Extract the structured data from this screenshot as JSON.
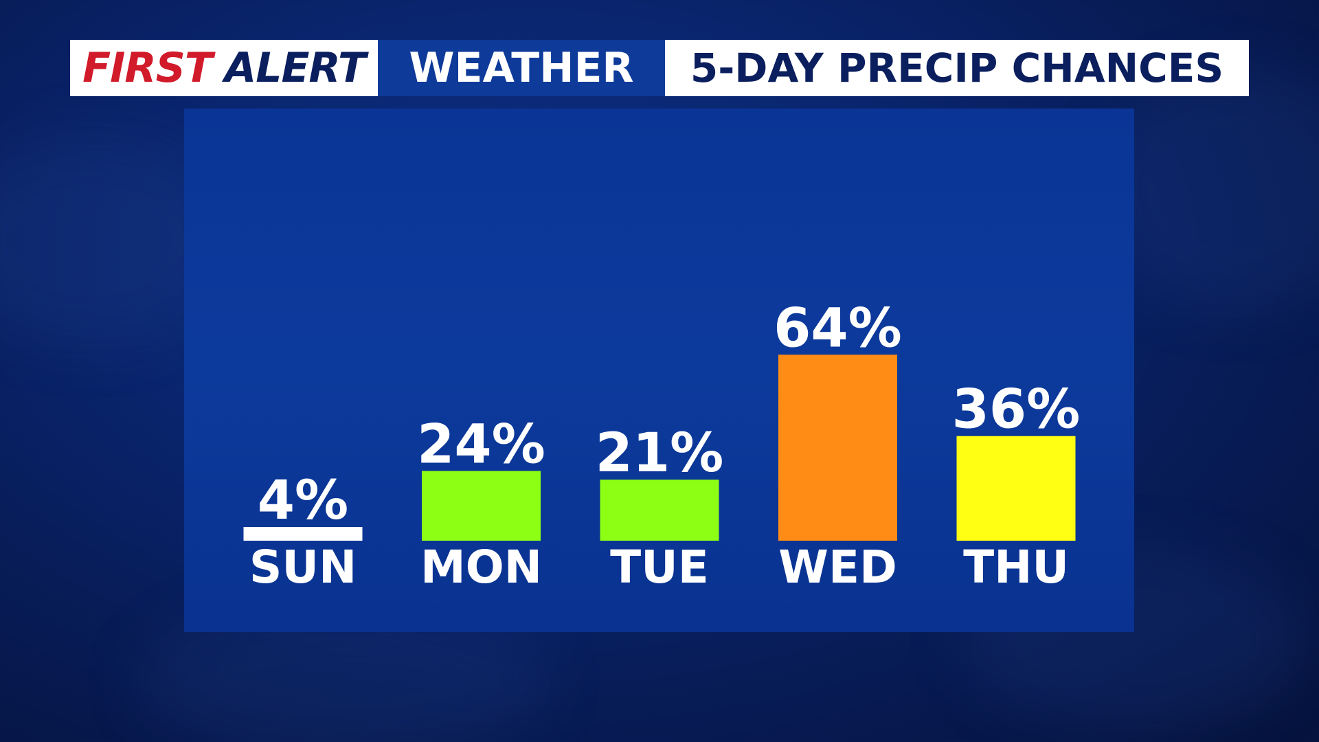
{
  "header": {
    "brand_first": "FIRST",
    "brand_alert": "ALERT",
    "section": "WEATHER",
    "title": "5-DAY PRECIP CHANCES"
  },
  "colors": {
    "low": "#ffffff",
    "moderate": "#8cff14",
    "high": "#ffff14",
    "very_high": "#ff8c14",
    "panel": "#0c3a9c"
  },
  "chart_data": {
    "type": "bar",
    "title": "5-DAY PRECIP CHANCES",
    "categories": [
      "SUN",
      "MON",
      "TUE",
      "WED",
      "THU"
    ],
    "values": [
      4,
      24,
      21,
      64,
      36
    ],
    "value_labels": [
      "4%",
      "24%",
      "21%",
      "64%",
      "36%"
    ],
    "bar_colors": [
      "#ffffff",
      "#8cff14",
      "#8cff14",
      "#ff8c14",
      "#ffff14"
    ],
    "ylim": [
      0,
      100
    ],
    "grid": false,
    "legend": "none"
  }
}
